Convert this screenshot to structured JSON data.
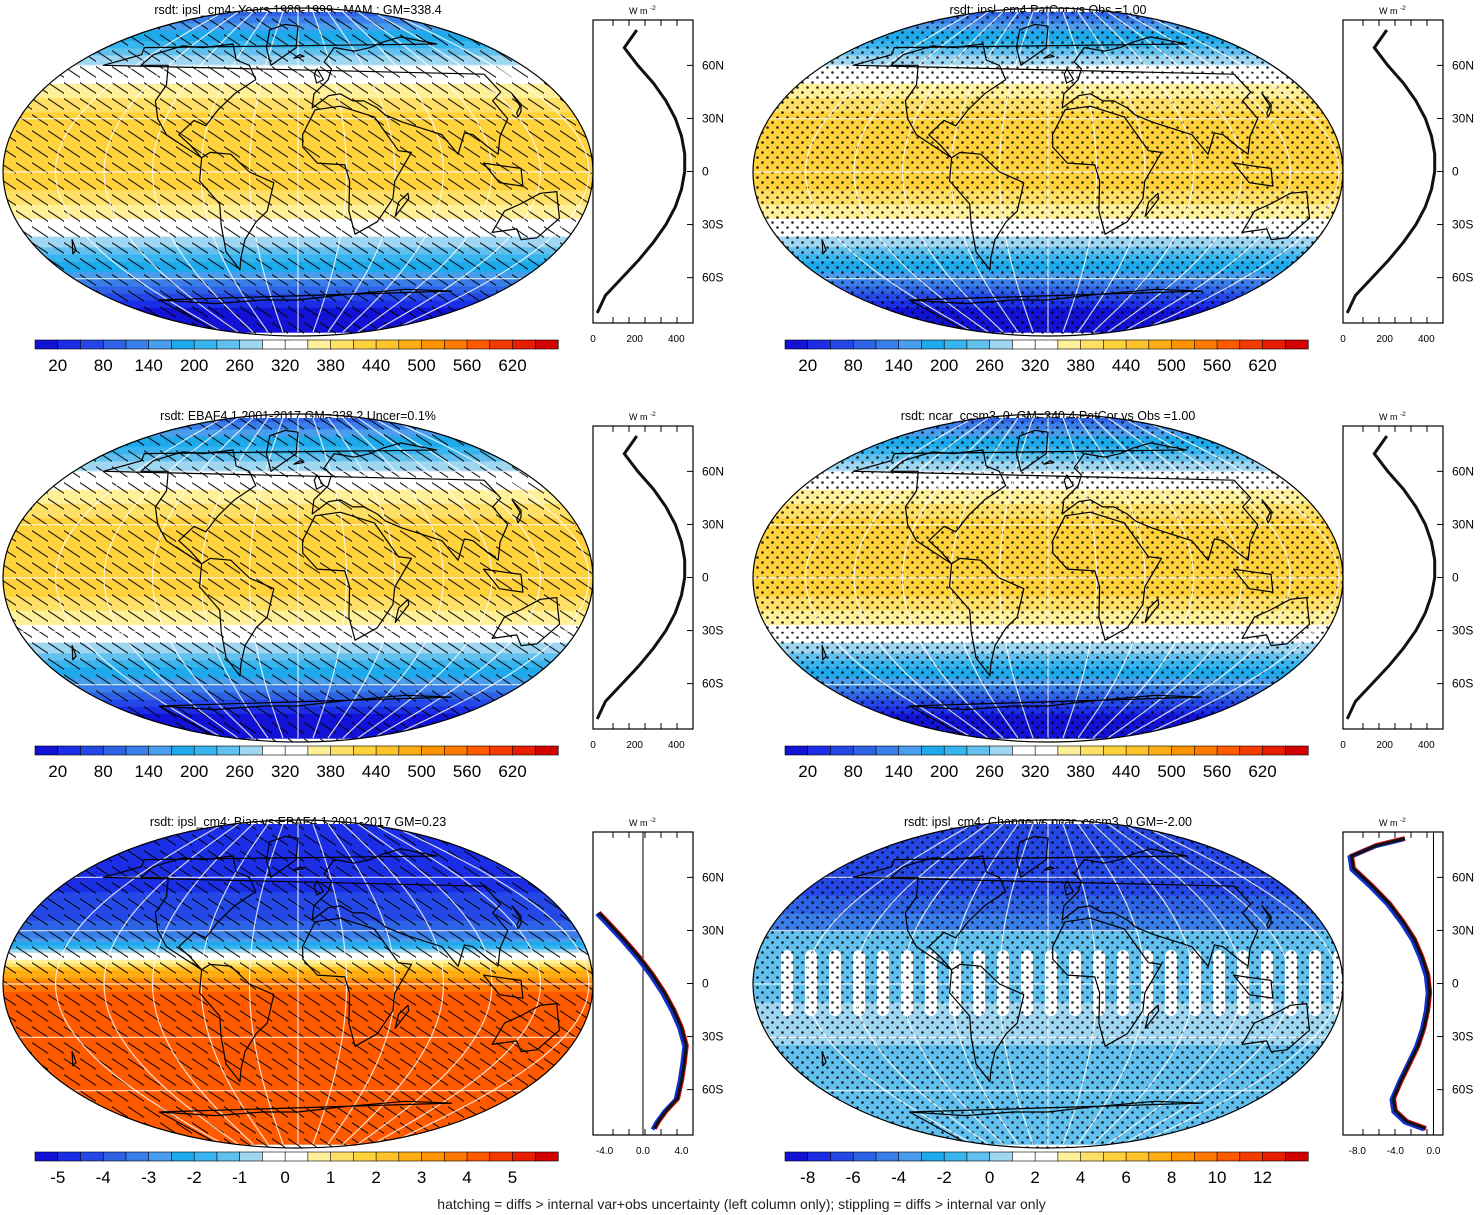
{
  "palette": [
    "#1212d6",
    "#1b2ee6",
    "#2447e6",
    "#2f63e6",
    "#3a7eea",
    "#4a9cec",
    "#1eaaea",
    "#38b4ee",
    "#62c0ee",
    "#9fd6f2",
    "#ffffff",
    "#ffffff",
    "#fff09a",
    "#ffe066",
    "#ffd23c",
    "#ffc228",
    "#ffad14",
    "#ff9400",
    "#ff7800",
    "#ff5a00",
    "#f53a00",
    "#e81c00",
    "#d40000"
  ],
  "footer": "hatching = diffs > internal var+obs uncertainty (left column only); stippling = diffs > internal var only",
  "chart_data": [
    {
      "type": "map",
      "title": "rsdt: ipsl_cm4: Years 1980-1999 : MAM : GM=338.4",
      "field": "insolation",
      "overlay": "hatching",
      "colorbar_labels": [
        "20",
        "80",
        "140",
        "200",
        "260",
        "320",
        "380",
        "440",
        "500",
        "560",
        "620"
      ],
      "profile": {
        "units_label": "W m",
        "units_exp": "-2",
        "xlim": [
          0,
          480
        ],
        "xticks": [
          "0",
          "200",
          "400"
        ],
        "lat_labels": [
          "60N",
          "30N",
          "0",
          "30S",
          "60S"
        ],
        "zero_line": false,
        "lat": [
          -80,
          -70,
          -60,
          -50,
          -40,
          -30,
          -20,
          -10,
          0,
          10,
          20,
          30,
          40,
          50,
          60,
          70,
          80
        ],
        "values": [
          20,
          60,
          140,
          220,
          290,
          350,
          395,
          425,
          440,
          440,
          425,
          395,
          350,
          290,
          215,
          150,
          210
        ]
      }
    },
    {
      "type": "map",
      "title": "rsdt: ipsl_cm4 PatCor vs Obs =1.00",
      "field": "insolation",
      "overlay": "stipple",
      "colorbar_labels": [
        "20",
        "80",
        "140",
        "200",
        "260",
        "320",
        "380",
        "440",
        "500",
        "560",
        "620"
      ],
      "profile": {
        "units_label": "W m",
        "units_exp": "-2",
        "xlim": [
          0,
          480
        ],
        "xticks": [
          "0",
          "200",
          "400"
        ],
        "lat_labels": [
          "60N",
          "30N",
          "0",
          "30S",
          "60S"
        ],
        "zero_line": false,
        "lat": [
          -80,
          -70,
          -60,
          -50,
          -40,
          -30,
          -20,
          -10,
          0,
          10,
          20,
          30,
          40,
          50,
          60,
          70,
          80
        ],
        "values": [
          20,
          60,
          140,
          220,
          290,
          350,
          395,
          425,
          440,
          440,
          425,
          395,
          350,
          290,
          215,
          150,
          210
        ]
      }
    },
    {
      "type": "map",
      "title": "rsdt: EBAF4.1 2001-2017 GM=338.2 Uncer=0.1%",
      "field": "insolation",
      "overlay": "hatching",
      "colorbar_labels": [
        "20",
        "80",
        "140",
        "200",
        "260",
        "320",
        "380",
        "440",
        "500",
        "560",
        "620"
      ],
      "profile": {
        "units_label": "W m",
        "units_exp": "-2",
        "xlim": [
          0,
          480
        ],
        "xticks": [
          "0",
          "200",
          "400"
        ],
        "lat_labels": [
          "60N",
          "30N",
          "0",
          "30S",
          "60S"
        ],
        "zero_line": false,
        "lat": [
          -80,
          -70,
          -60,
          -50,
          -40,
          -30,
          -20,
          -10,
          0,
          10,
          20,
          30,
          40,
          50,
          60,
          70,
          80
        ],
        "values": [
          20,
          60,
          140,
          220,
          290,
          350,
          395,
          425,
          440,
          440,
          425,
          395,
          350,
          290,
          215,
          150,
          210
        ]
      }
    },
    {
      "type": "map",
      "title": "rsdt: ncar_ccsm3_0: GM=340.4 PatCor vs Obs =1.00",
      "field": "insolation",
      "overlay": "stipple",
      "colorbar_labels": [
        "20",
        "80",
        "140",
        "200",
        "260",
        "320",
        "380",
        "440",
        "500",
        "560",
        "620"
      ],
      "profile": {
        "units_label": "W m",
        "units_exp": "-2",
        "xlim": [
          0,
          480
        ],
        "xticks": [
          "0",
          "200",
          "400"
        ],
        "lat_labels": [
          "60N",
          "30N",
          "0",
          "30S",
          "60S"
        ],
        "zero_line": false,
        "lat": [
          -80,
          -70,
          -60,
          -50,
          -40,
          -30,
          -20,
          -10,
          0,
          10,
          20,
          30,
          40,
          50,
          60,
          70,
          80
        ],
        "values": [
          20,
          60,
          140,
          220,
          290,
          350,
          395,
          425,
          440,
          440,
          425,
          395,
          350,
          290,
          215,
          150,
          210
        ]
      }
    },
    {
      "type": "map",
      "title": "rsdt: ipsl_cm4: Bias vs EBAF4.1 2001-2017 GM=0.23",
      "field": "bias",
      "overlay": "hatching",
      "colorbar_labels": [
        "-5",
        "-4",
        "-3",
        "-2",
        "-1",
        "0",
        "1",
        "2",
        "3",
        "4",
        "5"
      ],
      "profile": {
        "units_label": "W m",
        "units_exp": "-2",
        "xlim": [
          -5.2,
          5.2
        ],
        "xticks": [
          "-4.0",
          "0.0",
          "4.0"
        ],
        "lat_labels": [
          "60N",
          "30N",
          "0",
          "30S",
          "60S"
        ],
        "zero_line": true,
        "lat": [
          -82,
          -78,
          -72,
          -65,
          -55,
          -45,
          -35,
          -25,
          -15,
          -5,
          5,
          15,
          25,
          35,
          40
        ],
        "values": [
          1.2,
          1.6,
          2.4,
          3.6,
          4.0,
          4.3,
          4.5,
          4.0,
          3.2,
          2.2,
          1.0,
          -0.4,
          -2.0,
          -3.7,
          -4.6
        ]
      }
    },
    {
      "type": "map",
      "title": "rsdt: ipsl_cm4: Change vs ncar_ccsm3_0 GM=-2.00",
      "field": "change",
      "overlay": "stipple",
      "colorbar_labels": [
        "-8",
        "-6",
        "-4",
        "-2",
        "0",
        "2",
        "4",
        "6",
        "8",
        "10",
        "12"
      ],
      "profile": {
        "units_label": "W m",
        "units_exp": "-2",
        "xlim": [
          -9.5,
          1.0
        ],
        "xticks": [
          "-8.0",
          "-4.0",
          "0.0"
        ],
        "lat_labels": [
          "60N",
          "30N",
          "0",
          "30S",
          "60S"
        ],
        "zero_line": true,
        "lat": [
          -82,
          -78,
          -72,
          -65,
          -55,
          -45,
          -35,
          -25,
          -15,
          -5,
          5,
          15,
          25,
          35,
          45,
          55,
          65,
          72,
          78,
          82
        ],
        "values": [
          -0.8,
          -2.8,
          -4.0,
          -4.2,
          -3.4,
          -2.5,
          -1.6,
          -1.0,
          -0.6,
          -0.4,
          -0.6,
          -1.2,
          -2.0,
          -3.2,
          -4.6,
          -6.4,
          -8.4,
          -8.6,
          -6.0,
          -3.0
        ]
      }
    }
  ]
}
